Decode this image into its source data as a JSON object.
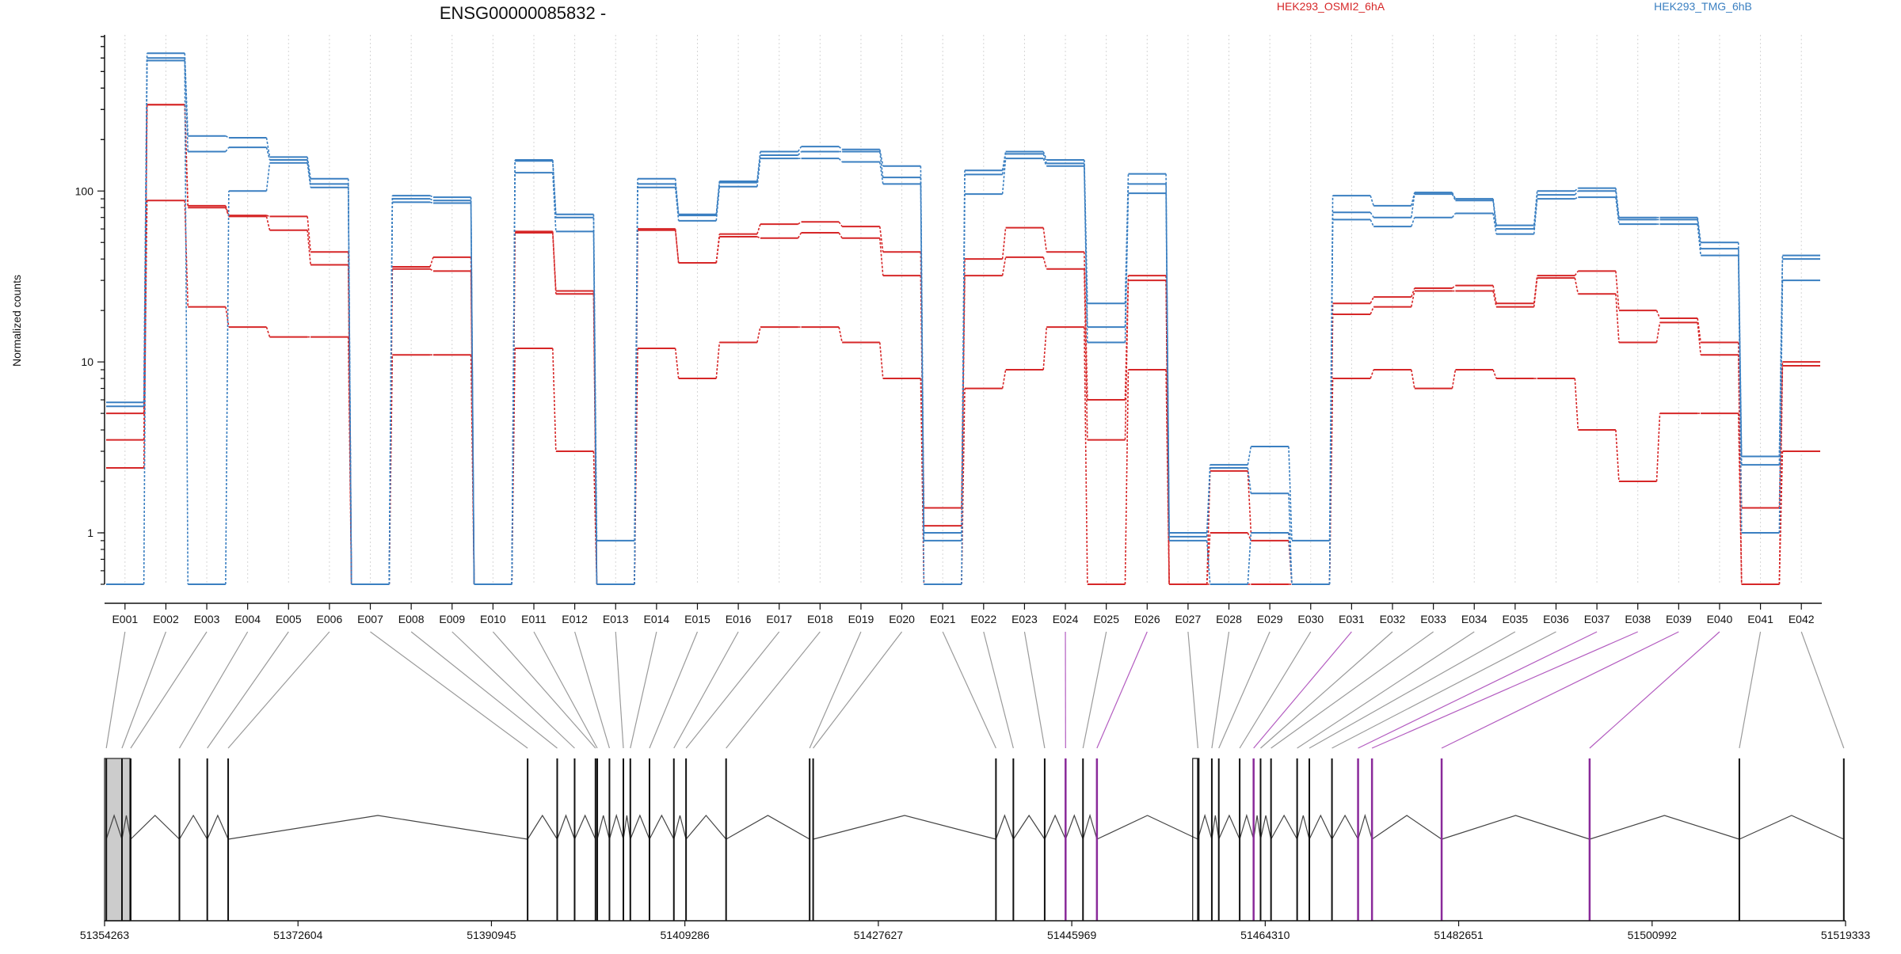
{
  "chart_data": {
    "type": "line",
    "title": "ENSG00000085832 -",
    "xlabel": "",
    "ylabel": "Normalized counts",
    "yscale": "log",
    "ylim": [
      0.5,
      820
    ],
    "yticks": [
      1,
      10,
      100
    ],
    "ytick_labels": [
      "1",
      "10",
      "100"
    ],
    "grid": "vertical-dotted",
    "legend": "top",
    "categories": [
      "E001",
      "E002",
      "E003",
      "E004",
      "E005",
      "E006",
      "E007",
      "E008",
      "E009",
      "E010",
      "E011",
      "E012",
      "E013",
      "E014",
      "E015",
      "E016",
      "E017",
      "E018",
      "E019",
      "E020",
      "E021",
      "E022",
      "E023",
      "E024",
      "E025",
      "E026",
      "E027",
      "E028",
      "E029",
      "E030",
      "E031",
      "E032",
      "E033",
      "E034",
      "E035",
      "E036",
      "E037",
      "E038",
      "E039",
      "E040",
      "E041",
      "E042"
    ],
    "series": [
      {
        "name": "HEK293_OSMI2_6hA",
        "group": "HEK293_OSMI2_6hA",
        "color": "#d62728",
        "values": [
          5,
          320,
          82,
          72,
          71,
          44,
          0.5,
          36,
          41,
          0.5,
          58,
          26,
          0.5,
          60,
          38,
          56,
          64,
          66,
          62,
          44,
          1.4,
          40,
          61,
          44,
          6,
          32,
          0.5,
          2.3,
          1,
          0.5,
          22,
          24,
          27,
          28,
          22,
          32,
          34,
          20,
          18,
          13,
          1.4,
          10
        ]
      },
      {
        "group": "HEK293_OSMI2_6hA",
        "color": "#d62728",
        "values": [
          3.5,
          320,
          80,
          71,
          59,
          37,
          0.5,
          35,
          34,
          0.5,
          57,
          25,
          0.5,
          59,
          38,
          54,
          53,
          57,
          53,
          32,
          1.1,
          32,
          41,
          35,
          3.5,
          30,
          0.5,
          1,
          0.9,
          0.5,
          19,
          21,
          26,
          26,
          21,
          31,
          25,
          13,
          17,
          11,
          0.5,
          9.5
        ]
      },
      {
        "group": "HEK293_OSMI2_6hA",
        "color": "#d62728",
        "values": [
          2.4,
          88,
          21,
          16,
          14,
          14,
          0.5,
          11,
          11,
          0.5,
          12,
          3,
          0.5,
          12,
          8,
          13,
          16,
          16,
          13,
          8,
          0.5,
          7,
          9,
          16,
          0.5,
          9,
          0.5,
          0.5,
          0.5,
          0.5,
          8,
          9,
          7,
          9,
          8,
          8,
          4,
          2,
          5,
          5,
          0.5,
          3
        ]
      },
      {
        "name": "HEK293_TMG_6hB",
        "group": "HEK293_TMG_6hB",
        "color": "#3a7fc1",
        "values": [
          5.8,
          640,
          210,
          205,
          158,
          118,
          0.5,
          94,
          92,
          0.5,
          152,
          73,
          0.9,
          118,
          73,
          114,
          170,
          182,
          175,
          140,
          1,
          132,
          170,
          152,
          22,
          126,
          1,
          2.5,
          3.2,
          0.9,
          94,
          82,
          98,
          90,
          63,
          100,
          104,
          70,
          70,
          50,
          2.8,
          42
        ]
      },
      {
        "group": "HEK293_TMG_6hB",
        "color": "#3a7fc1",
        "values": [
          5.5,
          600,
          170,
          180,
          152,
          110,
          0.5,
          90,
          88,
          0.5,
          150,
          70,
          0.5,
          110,
          72,
          112,
          162,
          170,
          170,
          120,
          0.9,
          125,
          165,
          145,
          16,
          110,
          0.95,
          2.4,
          1.7,
          0.5,
          75,
          70,
          96,
          88,
          60,
          95,
          100,
          68,
          68,
          46,
          2.5,
          40
        ]
      },
      {
        "group": "HEK293_TMG_6hB",
        "color": "#3a7fc1",
        "values": [
          0.5,
          580,
          0.5,
          100,
          146,
          105,
          0.5,
          86,
          85,
          0.5,
          128,
          58,
          0.5,
          105,
          67,
          106,
          155,
          155,
          148,
          110,
          0.5,
          96,
          155,
          140,
          13,
          97,
          0.9,
          0.5,
          1,
          0.5,
          68,
          62,
          70,
          74,
          56,
          90,
          92,
          64,
          64,
          42,
          1,
          30
        ]
      }
    ],
    "genome_axis": {
      "tick_labels": [
        "51354263",
        "51372604",
        "51390945",
        "51409286",
        "51427627",
        "51445969",
        "51464310",
        "51482651",
        "51500992",
        "51519333"
      ]
    }
  }
}
